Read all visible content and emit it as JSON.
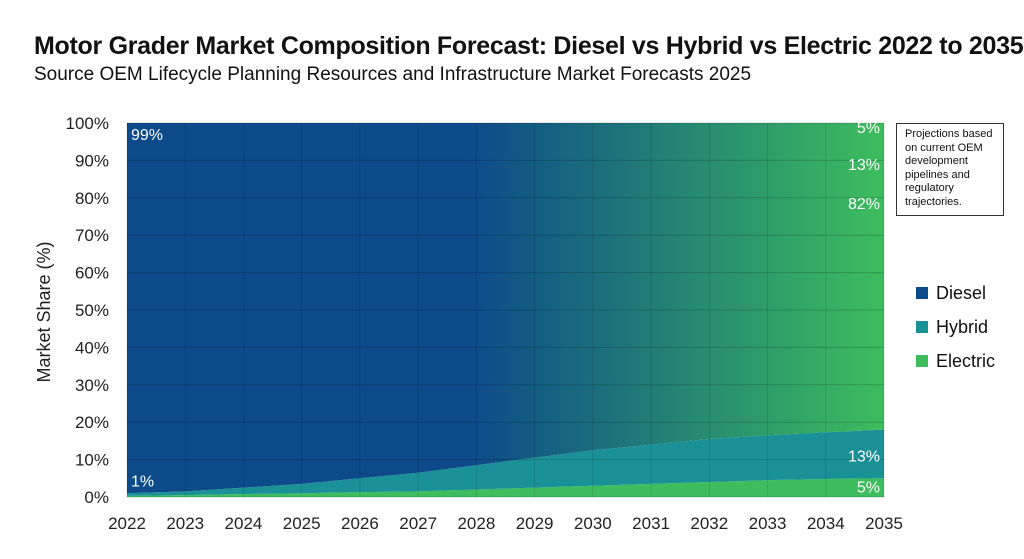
{
  "chart_data": {
    "type": "area",
    "stacked": true,
    "title": "Motor Grader Market Composition Forecast: Diesel vs Hybrid vs Electric 2022 to 2035",
    "subtitle": "Source OEM Lifecycle Planning Resources and Infrastructure Market Forecasts 2025",
    "ylabel": "Market Share (%)",
    "xlabel": "",
    "ylim": [
      0,
      100
    ],
    "yticks": [
      "0%",
      "10%",
      "20%",
      "30%",
      "40%",
      "50%",
      "60%",
      "70%",
      "80%",
      "90%",
      "100%"
    ],
    "x": [
      "2022",
      "2023",
      "2024",
      "2025",
      "2026",
      "2027",
      "2028",
      "2029",
      "2030",
      "2031",
      "2032",
      "2033",
      "2034",
      "2035"
    ],
    "series": [
      {
        "name": "Electric",
        "color": "#3dbd5d",
        "values": [
          0.3,
          0.5,
          0.8,
          1.0,
          1.3,
          1.5,
          2.0,
          2.5,
          3.0,
          3.5,
          4.0,
          4.5,
          4.8,
          5.0
        ]
      },
      {
        "name": "Hybrid",
        "color": "#1a9197",
        "values": [
          0.7,
          1.0,
          1.7,
          2.5,
          3.7,
          5.0,
          6.5,
          8.0,
          9.5,
          10.5,
          11.5,
          12.0,
          12.5,
          13.0
        ]
      },
      {
        "name": "Diesel",
        "color": "#0c4a8a",
        "values": [
          99.0,
          98.5,
          97.5,
          96.5,
          95.0,
          93.5,
          91.5,
          89.5,
          87.5,
          86.0,
          84.5,
          83.5,
          82.7,
          82.0
        ]
      }
    ],
    "grid": true,
    "legend_position": "right",
    "data_labels": {
      "start": {
        "diesel": "99%",
        "hybrid": "1%"
      },
      "end": {
        "electric_top": "5%",
        "hybrid_top": "13%",
        "diesel_end": "82%",
        "hybrid_bottom": "13%",
        "electric_bottom": "5%"
      }
    }
  },
  "legend": [
    {
      "label": "Diesel",
      "color": "#0c4a8a"
    },
    {
      "label": "Hybrid",
      "color": "#1a9197"
    },
    {
      "label": "Electric",
      "color": "#3dbd5d"
    }
  ],
  "annotation": "Projections based on current OEM development pipelines and regulatory trajectories."
}
